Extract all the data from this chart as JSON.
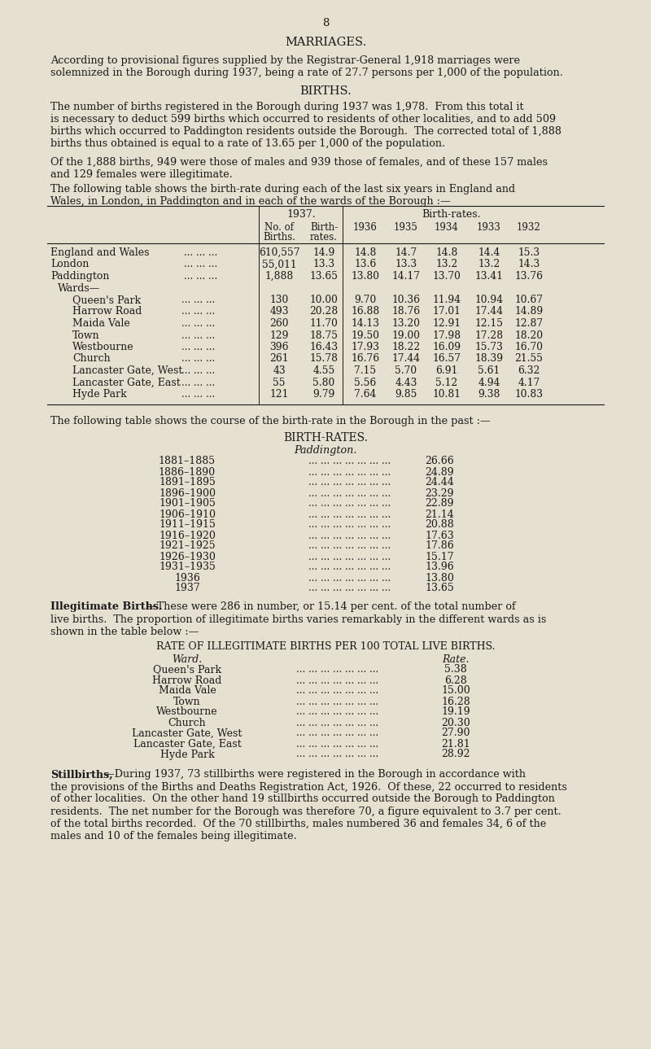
{
  "page_number": "8",
  "bg_color": "#e5e0d0",
  "text_color": "#1a1a1a",
  "title_marriages": "MARRIAGES.",
  "para_marriages_1": "According to provisional figures supplied by the Registrar-General 1,918 marriages were",
  "para_marriages_2": "solemnized in the Borough during 1937, being a rate of 27.7 persons per 1,000 of the population.",
  "title_births": "BIRTHS.",
  "para_births_1a": "The number of births registered in the Borough during 1937 was 1,978.  From this total it",
  "para_births_1b": "is necessary to deduct 599 births which occurred to residents of other localities, and to add 509",
  "para_births_1c": "births which occurred to Paddington residents outside the Borough.  The corrected total of 1,888",
  "para_births_1d": "births thus obtained is equal to a rate of 13.65 per 1,000 of the population.",
  "para_births_2a": "Of the 1,888 births, 949 were those of males and 939 those of females, and of these 157 males",
  "para_births_2b": "and 129 females were illegitimate.",
  "para_births_3a": "The following table shows the birth-rate during each of the last six years in England and",
  "para_births_3b": "Wales, in London, in Paddington and in each of the wards of the Borough :—",
  "table1_rows": [
    [
      "England and Wales",
      "610,557",
      "14.9",
      "14.8",
      "14.7",
      "14.8",
      "14.4",
      "15.3",
      false
    ],
    [
      "London",
      "55,011",
      "13.3",
      "13.6",
      "13.3",
      "13.2",
      "13.2",
      "14.3",
      false
    ],
    [
      "Paddington",
      "1,888",
      "13.65",
      "13.80",
      "14.17",
      "13.70",
      "13.41",
      "13.76",
      false
    ],
    [
      "Wards—",
      "",
      "",
      "",
      "",
      "",
      "",
      "",
      false
    ],
    [
      "Queen's Park",
      "130",
      "10.00",
      "9.70",
      "10.36",
      "11.94",
      "10.94",
      "10.67",
      true
    ],
    [
      "Harrow Road",
      "493",
      "20.28",
      "16.88",
      "18.76",
      "17.01",
      "17.44",
      "14.89",
      true
    ],
    [
      "Maida Vale",
      "260",
      "11.70",
      "14.13",
      "13.20",
      "12.91",
      "12.15",
      "12.87",
      true
    ],
    [
      "Town",
      "129",
      "18.75",
      "19.50",
      "19.00",
      "17.98",
      "17.28",
      "18.20",
      true
    ],
    [
      "Westbourne",
      "396",
      "16.43",
      "17.93",
      "18.22",
      "16.09",
      "15.73",
      "16.70",
      true
    ],
    [
      "Church",
      "261",
      "15.78",
      "16.76",
      "17.44",
      "16.57",
      "18.39",
      "21.55",
      true
    ],
    [
      "Lancaster Gate, West",
      "43",
      "4.55",
      "7.15",
      "5.70",
      "6.91",
      "5.61",
      "6.32",
      true
    ],
    [
      "Lancaster Gate, East",
      "55",
      "5.80",
      "5.56",
      "4.43",
      "5.12",
      "4.94",
      "4.17",
      true
    ],
    [
      "Hyde Park",
      "121",
      "9.79",
      "7.64",
      "9.85",
      "10.81",
      "9.38",
      "10.83",
      true
    ]
  ],
  "para_birthrates_intro": "The following table shows the course of the birth-rate in the Borough in the past :—",
  "title_birthrates": "BIRTH-RATES.",
  "subtitle_paddington": "Paddington.",
  "birthrates_data": [
    [
      "1881–1885",
      "26.66"
    ],
    [
      "1886–1890",
      "24.89"
    ],
    [
      "1891–1895",
      "24.44"
    ],
    [
      "1896–1900",
      "23.29"
    ],
    [
      "1901–1905",
      "22.89"
    ],
    [
      "1906–1910",
      "21.14"
    ],
    [
      "1911–1915",
      "20.88"
    ],
    [
      "1916–1920",
      "17.63"
    ],
    [
      "1921–1925",
      "17.86"
    ],
    [
      "1926–1930",
      "15.17"
    ],
    [
      "1931–1935",
      "13.96"
    ],
    [
      "1936",
      "13.80"
    ],
    [
      "1937",
      "13.65"
    ]
  ],
  "illeg_intro_bold": "Illegitimate Births.",
  "illeg_intro_rest1": "—These were 286 in number, or 15.14 per cent. of the total number of",
  "illeg_intro_rest2": "live births.  The proportion of illegitimate births varies remarkably in the different wards as is",
  "illeg_intro_rest3": "shown in the table below :—",
  "title_illeg_table": "RATE OF ILLEGITIMATE BIRTHS PER 100 TOTAL LIVE BIRTHS.",
  "illeg_rows": [
    [
      "Queen's Park",
      "5.38"
    ],
    [
      "Harrow Road",
      "6.28"
    ],
    [
      "Maida Vale",
      "15.00"
    ],
    [
      "Town",
      "16.28"
    ],
    [
      "Westbourne",
      "19.19"
    ],
    [
      "Church",
      "20.30"
    ],
    [
      "Lancaster Gate, West",
      "27.90"
    ],
    [
      "Lancaster Gate, East",
      "21.81"
    ],
    [
      "Hyde Park",
      "28.92"
    ]
  ],
  "still_bold": "Stillbirths,",
  "still_dash": "—",
  "still_rest1": "During 1937, 73 stillbirths were registered in the Borough in accordance with",
  "still_rest2": "the provisions of the Births and Deaths Registration Act, 1926.  Of these, 22 occurred to residents",
  "still_rest3": "of other localities.  On the other hand 19 stillbirths occurred outside the Borough to Paddington",
  "still_rest4": "residents.  The net number for the Borough was therefore 70, a figure equivalent to 3.7 per cent.",
  "still_rest5": "of the total births recorded.  Of the 70 stillbirths, males numbered 36 and females 34, 6 of the",
  "still_rest6": "males and 10 of the females being illegitimate."
}
